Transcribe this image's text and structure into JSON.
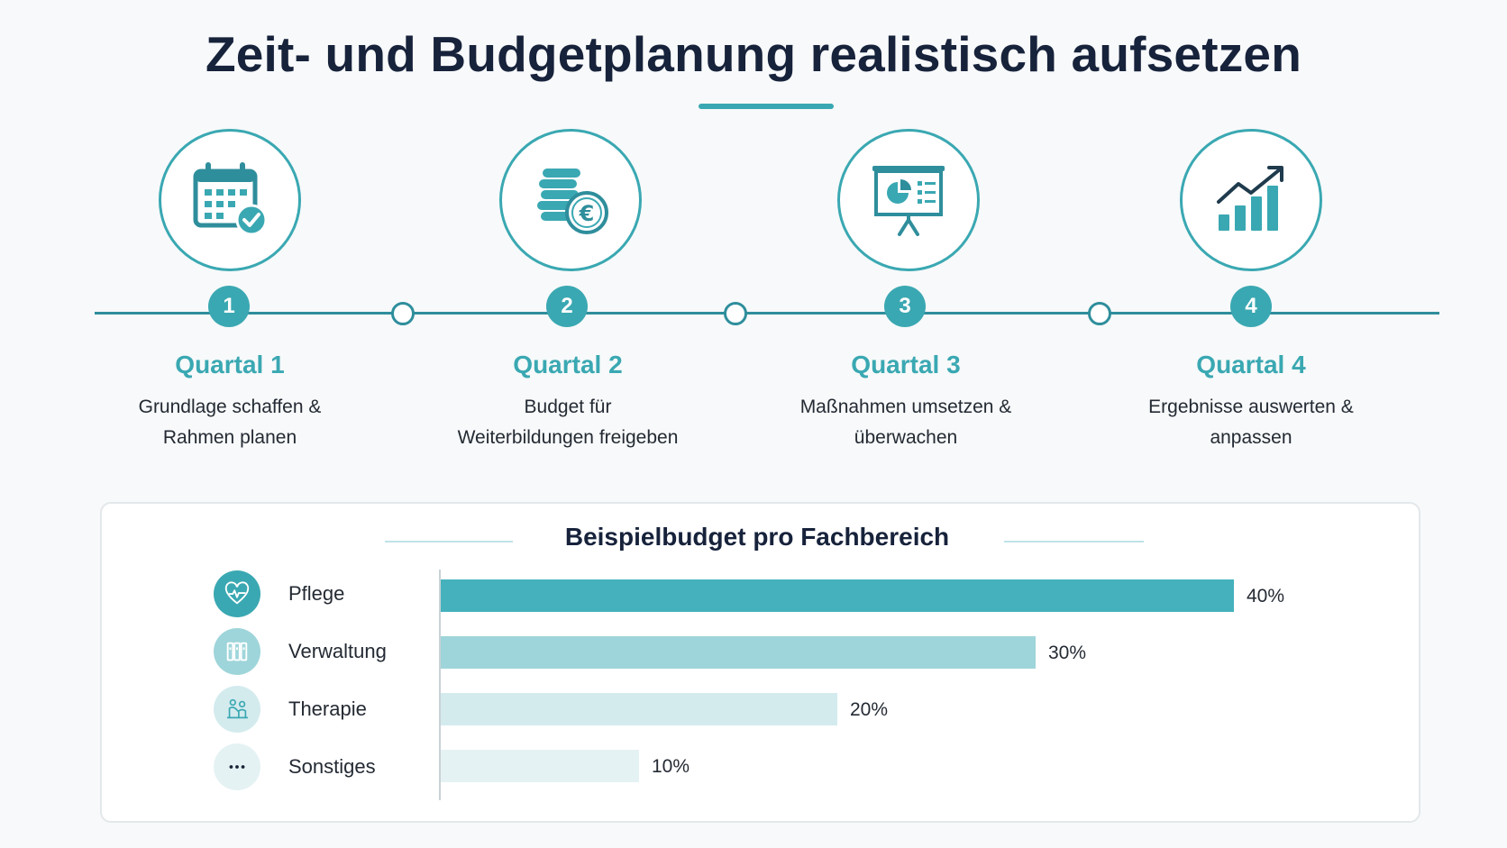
{
  "title": "Zeit- und Budgetplanung realistisch aufsetzen",
  "colors": {
    "accent": "#3aa8b2",
    "line": "#2f8e9c",
    "text": "#17223b"
  },
  "timeline": {
    "steps": [
      {
        "number": "1",
        "label": "Quartal 1",
        "desc": [
          "Grundlage schaffen &",
          "Rahmen planen"
        ],
        "icon": "calendar-check-icon"
      },
      {
        "number": "2",
        "label": "Quartal 2",
        "desc": [
          "Budget für",
          "Weiterbildungen freigeben"
        ],
        "icon": "euro-coins-icon"
      },
      {
        "number": "3",
        "label": "Quartal 3",
        "desc": [
          "Maßnahmen umsetzen &",
          "überwachen"
        ],
        "icon": "presentation-chart-icon"
      },
      {
        "number": "4",
        "label": "Quartal 4",
        "desc": [
          "Ergebnisse auswerten &",
          "anpassen"
        ],
        "icon": "growth-chart-icon"
      }
    ]
  },
  "budget": {
    "title": "Beispielbudget pro Fachbereich",
    "categories": [
      {
        "label": "Pflege",
        "value_label": "40%",
        "icon": "heart-pulse-icon"
      },
      {
        "label": "Verwaltung",
        "value_label": "30%",
        "icon": "folders-icon"
      },
      {
        "label": "Therapie",
        "value_label": "20%",
        "icon": "therapy-icon"
      },
      {
        "label": "Sonstiges",
        "value_label": "10%",
        "icon": "more-icon"
      }
    ]
  },
  "chart_data": {
    "type": "bar",
    "orientation": "horizontal",
    "title": "Beispielbudget pro Fachbereich",
    "categories": [
      "Pflege",
      "Verwaltung",
      "Therapie",
      "Sonstiges"
    ],
    "values": [
      40,
      30,
      20,
      10
    ],
    "unit": "%",
    "colors": [
      "#45b1bc",
      "#9ed5da",
      "#d4ebee",
      "#e5f2f4"
    ],
    "grid": false
  }
}
